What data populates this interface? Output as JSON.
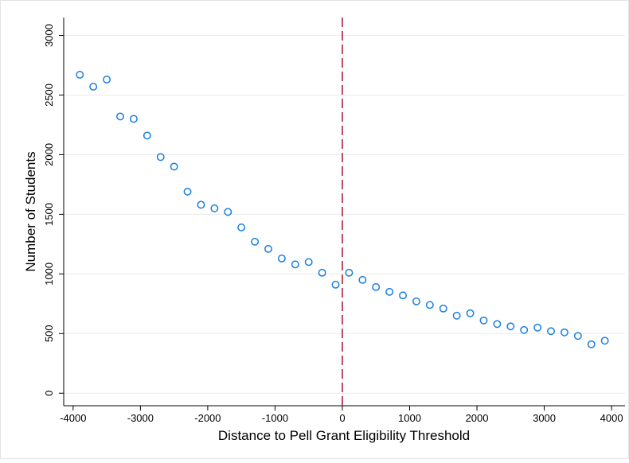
{
  "chart_data": {
    "type": "scatter",
    "x_label": "Distance to Pell Grant Eligibility Threshold",
    "y_label": "Number of Students",
    "x": [
      -3900,
      -3700,
      -3500,
      -3300,
      -3100,
      -2900,
      -2700,
      -2500,
      -2300,
      -2100,
      -1900,
      -1700,
      -1500,
      -1300,
      -1100,
      -900,
      -700,
      -500,
      -300,
      -100,
      100,
      300,
      500,
      700,
      900,
      1100,
      1300,
      1500,
      1700,
      1900,
      2100,
      2300,
      2500,
      2700,
      2900,
      3100,
      3300,
      3500,
      3700,
      3900
    ],
    "values": [
      2670,
      2570,
      2630,
      2320,
      2300,
      2160,
      1980,
      1900,
      1690,
      1580,
      1550,
      1520,
      1390,
      1270,
      1210,
      1130,
      1080,
      1100,
      1010,
      910,
      1010,
      950,
      890,
      850,
      820,
      770,
      740,
      710,
      650,
      670,
      610,
      580,
      560,
      530,
      550,
      520,
      510,
      480,
      410,
      440
    ],
    "color": "#1a7fe0",
    "xlim": [
      -4140,
      4200
    ],
    "ylim": [
      -105,
      3150
    ],
    "xticks": [
      -4000,
      -3000,
      -2000,
      -1000,
      0,
      1000,
      2000,
      3000,
      4000
    ],
    "yticks": [
      0,
      500,
      1000,
      1500,
      2000,
      2500,
      3000
    ],
    "grid": true,
    "vline": {
      "x": 0,
      "color": "#b0203c"
    }
  }
}
